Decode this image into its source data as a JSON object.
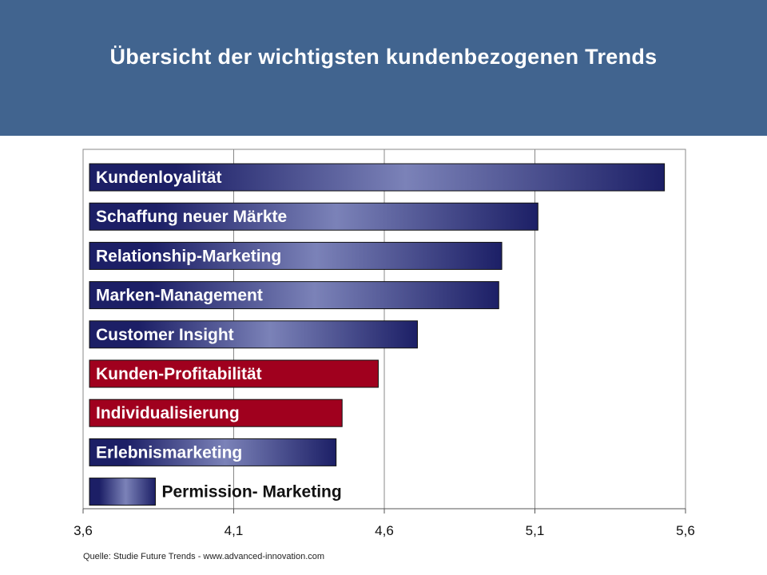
{
  "header": {
    "title": "Übersicht der wichtigsten kundenbezogenen Trends",
    "background": "#41648f"
  },
  "chart_data": {
    "type": "bar",
    "orientation": "horizontal",
    "categories": [
      "Kundenloyalität",
      "Schaffung neuer Märkte",
      "Relationship-Marketing",
      "Marken-Management",
      "Customer Insight",
      "Kunden-Profitabilität",
      "Individualisierung",
      "Erlebnismarketing",
      "Permission- Marketing"
    ],
    "values": [
      5.53,
      5.11,
      4.99,
      4.98,
      4.71,
      4.58,
      4.46,
      4.44,
      3.84
    ],
    "highlight": [
      false,
      false,
      false,
      false,
      false,
      true,
      true,
      false,
      false
    ],
    "colors": {
      "bar": "#1c1f66",
      "bar_mid": "#7b82b8",
      "highlight": "#a0001e",
      "grid": "#888888",
      "axis": "#555555"
    },
    "xlim": [
      3.6,
      5.6
    ],
    "xticks": [
      "3,6",
      "4,1",
      "4,6",
      "5,1",
      "5,6"
    ],
    "xtick_values": [
      3.6,
      4.1,
      4.6,
      5.1,
      5.6
    ],
    "grid": true
  },
  "footer": {
    "source": "Quelle: Studie Future Trends - www.advanced-innovation.com"
  }
}
